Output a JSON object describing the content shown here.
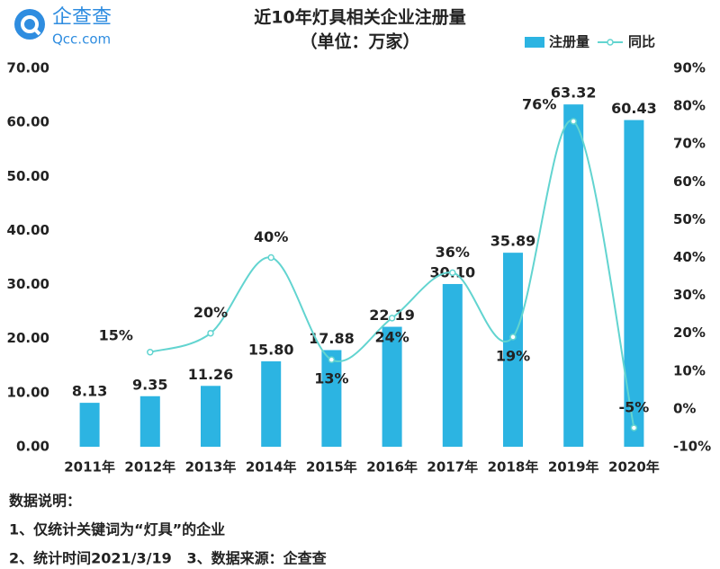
{
  "logo": {
    "name": "企查查",
    "domain": "Qcc.com"
  },
  "chart_data": {
    "type": "bar-line",
    "title": "近10年灯具相关企业注册量",
    "subtitle": "（单位：万家）",
    "categories": [
      "2011年",
      "2012年",
      "2013年",
      "2014年",
      "2015年",
      "2016年",
      "2017年",
      "2018年",
      "2019年",
      "2020年"
    ],
    "series": [
      {
        "name": "注册量",
        "type": "bar",
        "color": "#2cb4e2",
        "values": [
          8.13,
          9.35,
          11.26,
          15.8,
          17.88,
          22.19,
          30.1,
          35.89,
          63.32,
          60.43
        ],
        "value_labels": [
          "8.13",
          "9.35",
          "11.26",
          "15.80",
          "17.88",
          "22.19",
          "30.10",
          "35.89",
          "63.32",
          "60.43"
        ]
      },
      {
        "name": "同比",
        "type": "line",
        "axis": "y2",
        "color": "#62d4d0",
        "values": [
          null,
          15,
          20,
          40,
          13,
          24,
          36,
          19,
          76,
          -5
        ],
        "value_labels": [
          null,
          "15%",
          "20%",
          "40%",
          "13%",
          "24%",
          "36%",
          "19%",
          "76%",
          "-5%"
        ]
      }
    ],
    "ylim": [
      0,
      70
    ],
    "yticks": [
      {
        "value": 0,
        "label": "0.00"
      },
      {
        "value": 10,
        "label": "10.00"
      },
      {
        "value": 20,
        "label": "20.00"
      },
      {
        "value": 30,
        "label": "30.00"
      },
      {
        "value": 40,
        "label": "40.00"
      },
      {
        "value": 50,
        "label": "50.00"
      },
      {
        "value": 60,
        "label": "60.00"
      },
      {
        "value": 70,
        "label": "70.00"
      }
    ],
    "y2lim": [
      -10,
      90
    ],
    "y2ticks": [
      {
        "value": -10,
        "label": "-10%"
      },
      {
        "value": 0,
        "label": "0%"
      },
      {
        "value": 10,
        "label": "10%"
      },
      {
        "value": 20,
        "label": "20%"
      },
      {
        "value": 30,
        "label": "30%"
      },
      {
        "value": 40,
        "label": "40%"
      },
      {
        "value": 50,
        "label": "50%"
      },
      {
        "value": 60,
        "label": "60%"
      },
      {
        "value": 70,
        "label": "70%"
      },
      {
        "value": 80,
        "label": "80%"
      },
      {
        "value": 90,
        "label": "90%"
      }
    ],
    "grid": false,
    "legend": "top-right"
  },
  "notes": [
    "数据说明：",
    "1、仅统计关键词为“灯具”的企业",
    "2、统计时间2021/3/19   3、数据来源：企查查"
  ]
}
